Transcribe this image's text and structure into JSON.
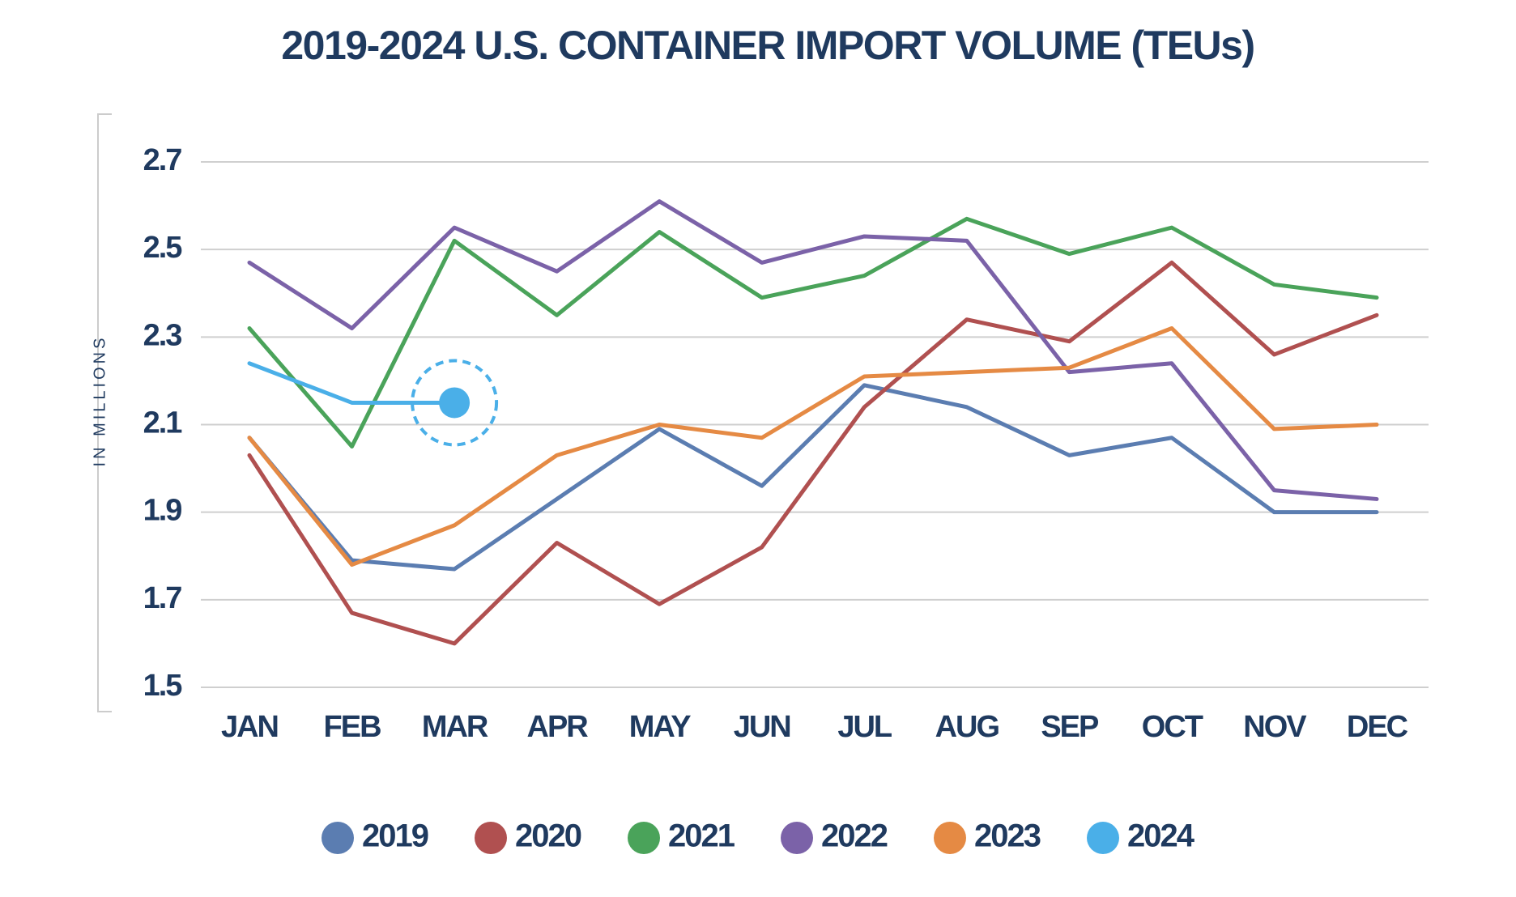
{
  "chart_data": {
    "type": "line",
    "title": "2019-2024 U.S. CONTAINER IMPORT VOLUME (TEUs)",
    "y_label": "IN MILLIONS",
    "categories": [
      "JAN",
      "FEB",
      "MAR",
      "APR",
      "MAY",
      "JUN",
      "JUL",
      "AUG",
      "SEP",
      "OCT",
      "NOV",
      "DEC"
    ],
    "ylim": [
      1.5,
      2.7
    ],
    "yticks": [
      1.5,
      1.7,
      1.9,
      2.1,
      2.3,
      2.5,
      2.7
    ],
    "grid": true,
    "legend": "bottom",
    "series": [
      {
        "name": "2019",
        "color": "#5b7db1",
        "values": [
          2.07,
          1.79,
          1.77,
          1.93,
          2.09,
          1.96,
          2.19,
          2.14,
          2.03,
          2.07,
          1.9,
          1.9
        ]
      },
      {
        "name": "2020",
        "color": "#b05050",
        "values": [
          2.03,
          1.67,
          1.6,
          1.83,
          1.69,
          1.82,
          2.14,
          2.34,
          2.29,
          2.47,
          2.26,
          2.35
        ]
      },
      {
        "name": "2021",
        "color": "#4aa35a",
        "values": [
          2.32,
          2.05,
          2.52,
          2.35,
          2.54,
          2.39,
          2.44,
          2.57,
          2.49,
          2.55,
          2.42,
          2.39
        ]
      },
      {
        "name": "2022",
        "color": "#7b62a8",
        "values": [
          2.47,
          2.32,
          2.55,
          2.45,
          2.61,
          2.47,
          2.53,
          2.52,
          2.22,
          2.24,
          1.95,
          1.93
        ]
      },
      {
        "name": "2023",
        "color": "#e58a44",
        "values": [
          2.07,
          1.78,
          1.87,
          2.03,
          2.1,
          2.07,
          2.21,
          2.22,
          2.23,
          2.32,
          2.09,
          2.1
        ]
      },
      {
        "name": "2024",
        "color": "#4aafe8",
        "values": [
          2.24,
          2.15,
          2.15,
          null,
          null,
          null,
          null,
          null,
          null,
          null,
          null,
          null
        ]
      }
    ]
  }
}
